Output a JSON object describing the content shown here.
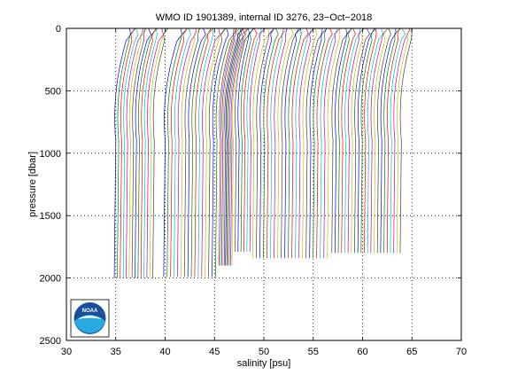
{
  "chart_data": {
    "type": "line",
    "title": "WMO ID 1901389, internal ID 3276, 23−Oct−2018",
    "xlabel": "salinity [psu]",
    "ylabel": "pressure [dbar]",
    "xlim": [
      30,
      70
    ],
    "ylim": [
      0,
      2500
    ],
    "y_reversed": true,
    "grid": true,
    "grid_style": "dotted",
    "x_ticks": [
      "30",
      "35",
      "40",
      "45",
      "50",
      "55",
      "60",
      "65",
      "70"
    ],
    "y_ticks": [
      "0",
      "500",
      "1000",
      "1500",
      "2000",
      "2500"
    ],
    "series_colors": [
      "#0000ff",
      "#008000",
      "#ff0000",
      "#00bfbf",
      "#bf00bf",
      "#bfbf00",
      "#404040"
    ],
    "profile_groups": [
      {
        "start_salinity": 35.0,
        "count": 14,
        "spacing": 0.3,
        "max_pressure": 2000,
        "surface_offset": 1.4
      },
      {
        "start_salinity": 40.0,
        "count": 16,
        "spacing": 0.35,
        "max_pressure": 1990,
        "surface_offset": 1.6
      },
      {
        "start_salinity": 45.6,
        "count": 11,
        "spacing": 0.13,
        "max_pressure": 1900,
        "surface_offset": 1.5
      },
      {
        "start_salinity": 47.2,
        "count": 6,
        "spacing": 0.3,
        "max_pressure": 1790,
        "surface_offset": 1.2
      },
      {
        "start_salinity": 49.0,
        "count": 22,
        "spacing": 0.36,
        "max_pressure": 1840,
        "surface_offset": 1.4
      },
      {
        "start_salinity": 57.0,
        "count": 22,
        "spacing": 0.33,
        "max_pressure": 1800,
        "surface_offset": 1.3
      }
    ],
    "logo": {
      "text": "NOAA",
      "position": "bottom-left"
    }
  }
}
